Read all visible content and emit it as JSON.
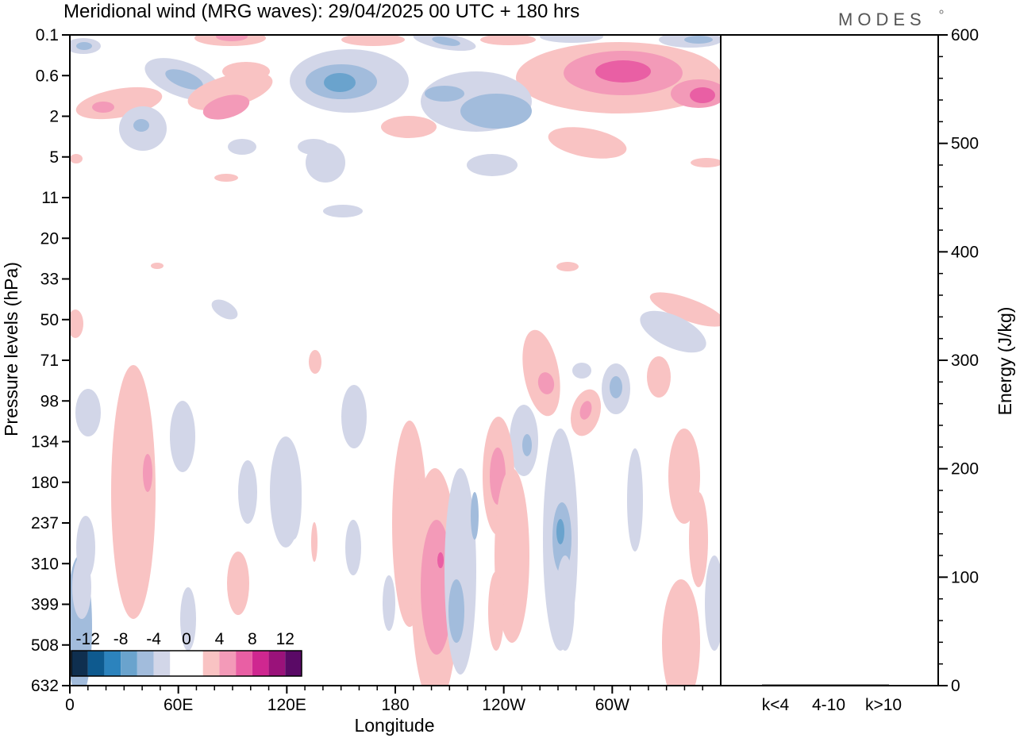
{
  "chart_data": {
    "type": "heatmap",
    "title": "Meridional wind (MRG waves):  29/04/2025  00 UTC  + 180 hrs",
    "brand": "MODES",
    "xlabel": "Longitude",
    "ylabel": "Pressure levels (hPa)",
    "y2label": "Energy (J/kg)",
    "x_ticks": [
      "0",
      "60E",
      "120E",
      "180",
      "120W",
      "60W"
    ],
    "y_ticks": [
      "0.1",
      "0.6",
      "2",
      "5",
      "11",
      "20",
      "33",
      "50",
      "71",
      "98",
      "134",
      "180",
      "237",
      "310",
      "399",
      "508",
      "632"
    ],
    "y2_ticks": [
      "0",
      "100",
      "200",
      "300",
      "400",
      "500",
      "600"
    ],
    "y2_range": [
      0,
      600
    ],
    "energy_categories": [
      "k<4",
      "4-10",
      "k>10"
    ],
    "colorbar": {
      "labels": [
        "-12",
        "-8",
        "-4",
        "0",
        "4",
        "8",
        "12"
      ],
      "colors": [
        "#0f2f4f",
        "#0e5a8f",
        "#2c83bd",
        "#6aa3cd",
        "#a2bcdc",
        "#d2d6e8",
        "#ffffff",
        "#ffffff",
        "#f9c3c3",
        "#f39ab8",
        "#e95fa4",
        "#cf2790",
        "#9a127a",
        "#5a0a66"
      ]
    },
    "colors": {
      "neg1": "#d2d6e8",
      "neg2": "#a2bcdc",
      "neg3": "#6aa3cd",
      "neg4": "#2c83bd",
      "neg5": "#0e5a8f",
      "pos1": "#f9c3c3",
      "pos2": "#f39ab8",
      "pos3": "#e95fa4",
      "pos4": "#cf2790",
      "pos5": "#9a127a"
    }
  }
}
